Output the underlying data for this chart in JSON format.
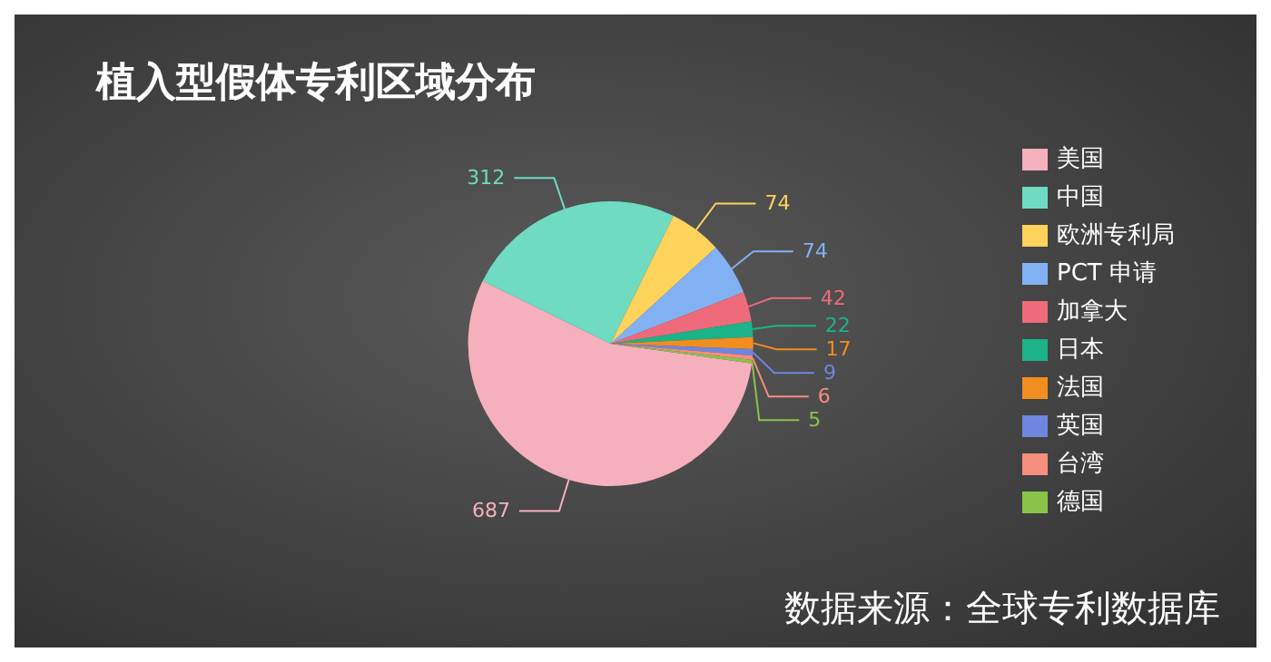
{
  "chart_data": {
    "type": "pie",
    "title": "植入型假体专利区域分布",
    "categories": [
      "美国",
      "中国",
      "欧洲专利局",
      "PCT 申请",
      "加拿大",
      "日本",
      "法国",
      "英国",
      "台湾",
      "德国"
    ],
    "values": [
      687,
      312,
      74,
      74,
      42,
      22,
      17,
      9,
      6,
      5
    ],
    "colors": [
      "#f6afbd",
      "#6fdbc1",
      "#fdd35c",
      "#82b1f3",
      "#ef6a7a",
      "#1cb389",
      "#f28d20",
      "#6f86e0",
      "#f58e7c",
      "#8bc34a"
    ],
    "data_labels": true,
    "legend": "right",
    "annotations": [
      "数据来源：全球专利数据库"
    ]
  }
}
